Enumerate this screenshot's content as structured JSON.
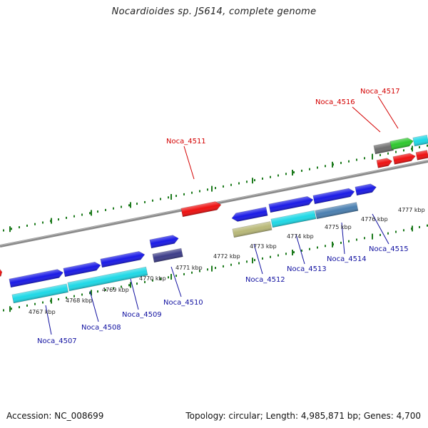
{
  "header": {
    "title": "Nocardioides sp. JS614, complete genome"
  },
  "footer": {
    "accession": "Accession: NC_008699",
    "summary": "Topology: circular; Length: 4,985,871 bp; Genes: 4,700"
  },
  "colors": {
    "backbone": "#8a8a8a",
    "ticks": "#1c7a1c",
    "top_label": "#d40000",
    "bottom_label": "#1010a0",
    "blue": "#1a1ae6",
    "cyan": "#1ed8e6",
    "red": "#ee1111",
    "green": "#2ec82e",
    "gray": "#6e6e6e",
    "olive": "#b8b878",
    "slate": "#4a7fb0",
    "navy": "#3c3c88"
  },
  "scale": {
    "labels": [
      "4767 kbp",
      "4768 kbp",
      "4769 kbp",
      "4770 kbp",
      "4771 kbp",
      "4772 kbp",
      "4773 kbp",
      "4774 kbp",
      "4775 kbp",
      "4776 kbp",
      "4777 kbp"
    ]
  },
  "genes": {
    "top": [
      {
        "name": "Noca_4511"
      },
      {
        "name": "Noca_4516"
      },
      {
        "name": "Noca_4517"
      }
    ],
    "bottom": [
      {
        "name": "Noca_4507"
      },
      {
        "name": "Noca_4508"
      },
      {
        "name": "Noca_4509"
      },
      {
        "name": "Noca_4510"
      },
      {
        "name": "Noca_4512"
      },
      {
        "name": "Noca_4513"
      },
      {
        "name": "Noca_4514"
      },
      {
        "name": "Noca_4515"
      }
    ]
  }
}
